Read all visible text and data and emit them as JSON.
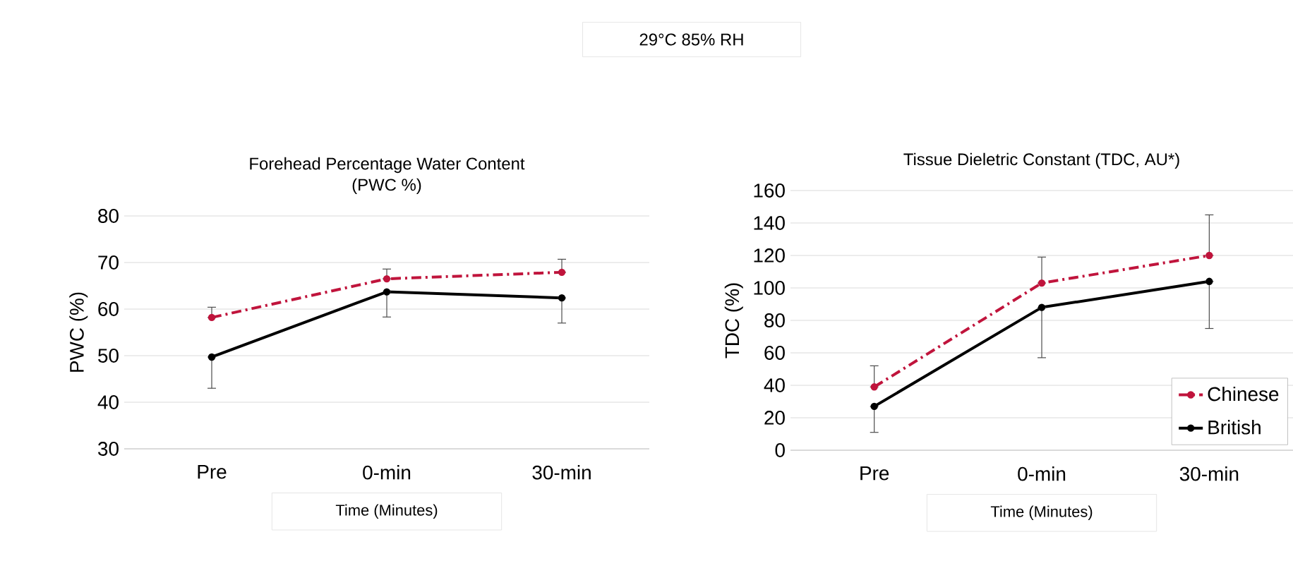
{
  "chart_data": [
    {
      "type": "line",
      "title": "Forehead Percentage Water Content\n(PWC %)",
      "xlabel": "Time (Minutes)",
      "ylabel": "PWC (%)",
      "annotations": [
        "29°C 85% RH"
      ],
      "categories": [
        "Pre",
        "0-min",
        "30-min"
      ],
      "ylim": [
        30,
        80
      ],
      "yticks": [
        30,
        40,
        50,
        60,
        70,
        80
      ],
      "grid": "y",
      "legend": false,
      "marker": "circle",
      "series": [
        {
          "color": "#c0143c",
          "line_style": "dashed",
          "values": [
            58.2,
            66.5,
            67.9
          ],
          "errors": [
            [
              58.2,
              60.4
            ],
            [
              66.5,
              68.6
            ],
            [
              67.9,
              70.7
            ]
          ]
        },
        {
          "color": "#000000",
          "line_style": "solid",
          "values": [
            49.7,
            63.7,
            62.4
          ],
          "errors": [
            [
              43,
              49.7
            ],
            [
              58.3,
              63.7
            ],
            [
              57,
              62.4
            ]
          ]
        }
      ]
    },
    {
      "type": "line",
      "title": "Tissue Dieletric Constant (TDC, AU*)",
      "xlabel": "Time (Minutes)",
      "ylabel": "TDC (%)",
      "categories": [
        "Pre",
        "0-min",
        "30-min"
      ],
      "ylim": [
        0,
        160
      ],
      "yticks": [
        0,
        20,
        40,
        60,
        80,
        100,
        120,
        140,
        160
      ],
      "grid": "y",
      "legend": "bottom right",
      "marker": "circle",
      "series": [
        {
          "name": "Chinese",
          "color": "#c0143c",
          "line_style": "dashed",
          "values": [
            39,
            103,
            120
          ],
          "errors": [
            [
              39,
              52
            ],
            [
              103,
              119
            ],
            [
              120,
              145
            ]
          ]
        },
        {
          "name": "British",
          "color": "#000000",
          "line_style": "solid",
          "values": [
            27,
            88,
            104
          ],
          "errors": [
            [
              11,
              27
            ],
            [
              57,
              88
            ],
            [
              75,
              104
            ]
          ]
        }
      ]
    }
  ]
}
